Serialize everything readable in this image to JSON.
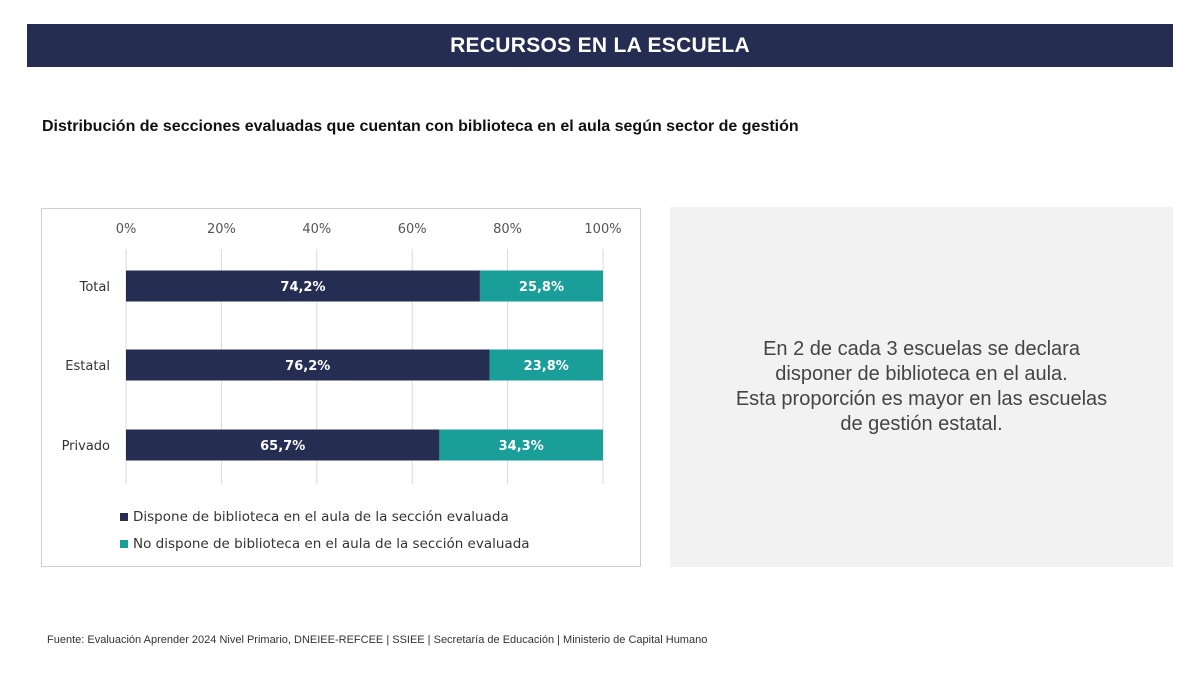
{
  "header": {
    "title": "RECURSOS EN LA ESCUELA"
  },
  "subtitle": "Distribución de secciones evaluadas que cuentan con biblioteca en el aula según sector de gestión",
  "note": {
    "text": "En 2 de cada 3 escuelas se declara\ndisponer de biblioteca en el aula.\nEsta proporción es mayor en las escuelas\nde gestión estatal."
  },
  "footer": {
    "source": "Fuente: Evaluación Aprender 2024 Nivel Primario, DNEIEE-REFCEE | SSIEE | Secretaría de Educación | Ministerio de Capital Humano"
  },
  "chart_data": {
    "type": "bar",
    "orientation": "horizontal",
    "stacked": true,
    "categories": [
      "Total",
      "Estatal",
      "Privado"
    ],
    "series": [
      {
        "name": "Dispone de biblioteca en el aula de la sección evaluada",
        "values": [
          74.2,
          76.2,
          65.7
        ],
        "labels": [
          "74,2%",
          "76,2%",
          "65,7%"
        ],
        "color": "#262d52"
      },
      {
        "name": "No dispone de biblioteca en el aula de la sección evaluada",
        "values": [
          25.8,
          23.8,
          34.3
        ],
        "labels": [
          "25,8%",
          "23,8%",
          "34,3%"
        ],
        "color": "#1a9e9a"
      }
    ],
    "xlim": [
      0,
      100
    ],
    "x_ticks": [
      0,
      20,
      40,
      60,
      80,
      100
    ],
    "x_tick_labels": [
      "0%",
      "20%",
      "40%",
      "60%",
      "80%",
      "100%"
    ],
    "x_axis_position": "top",
    "grid": true,
    "legend_position": "bottom-left"
  }
}
